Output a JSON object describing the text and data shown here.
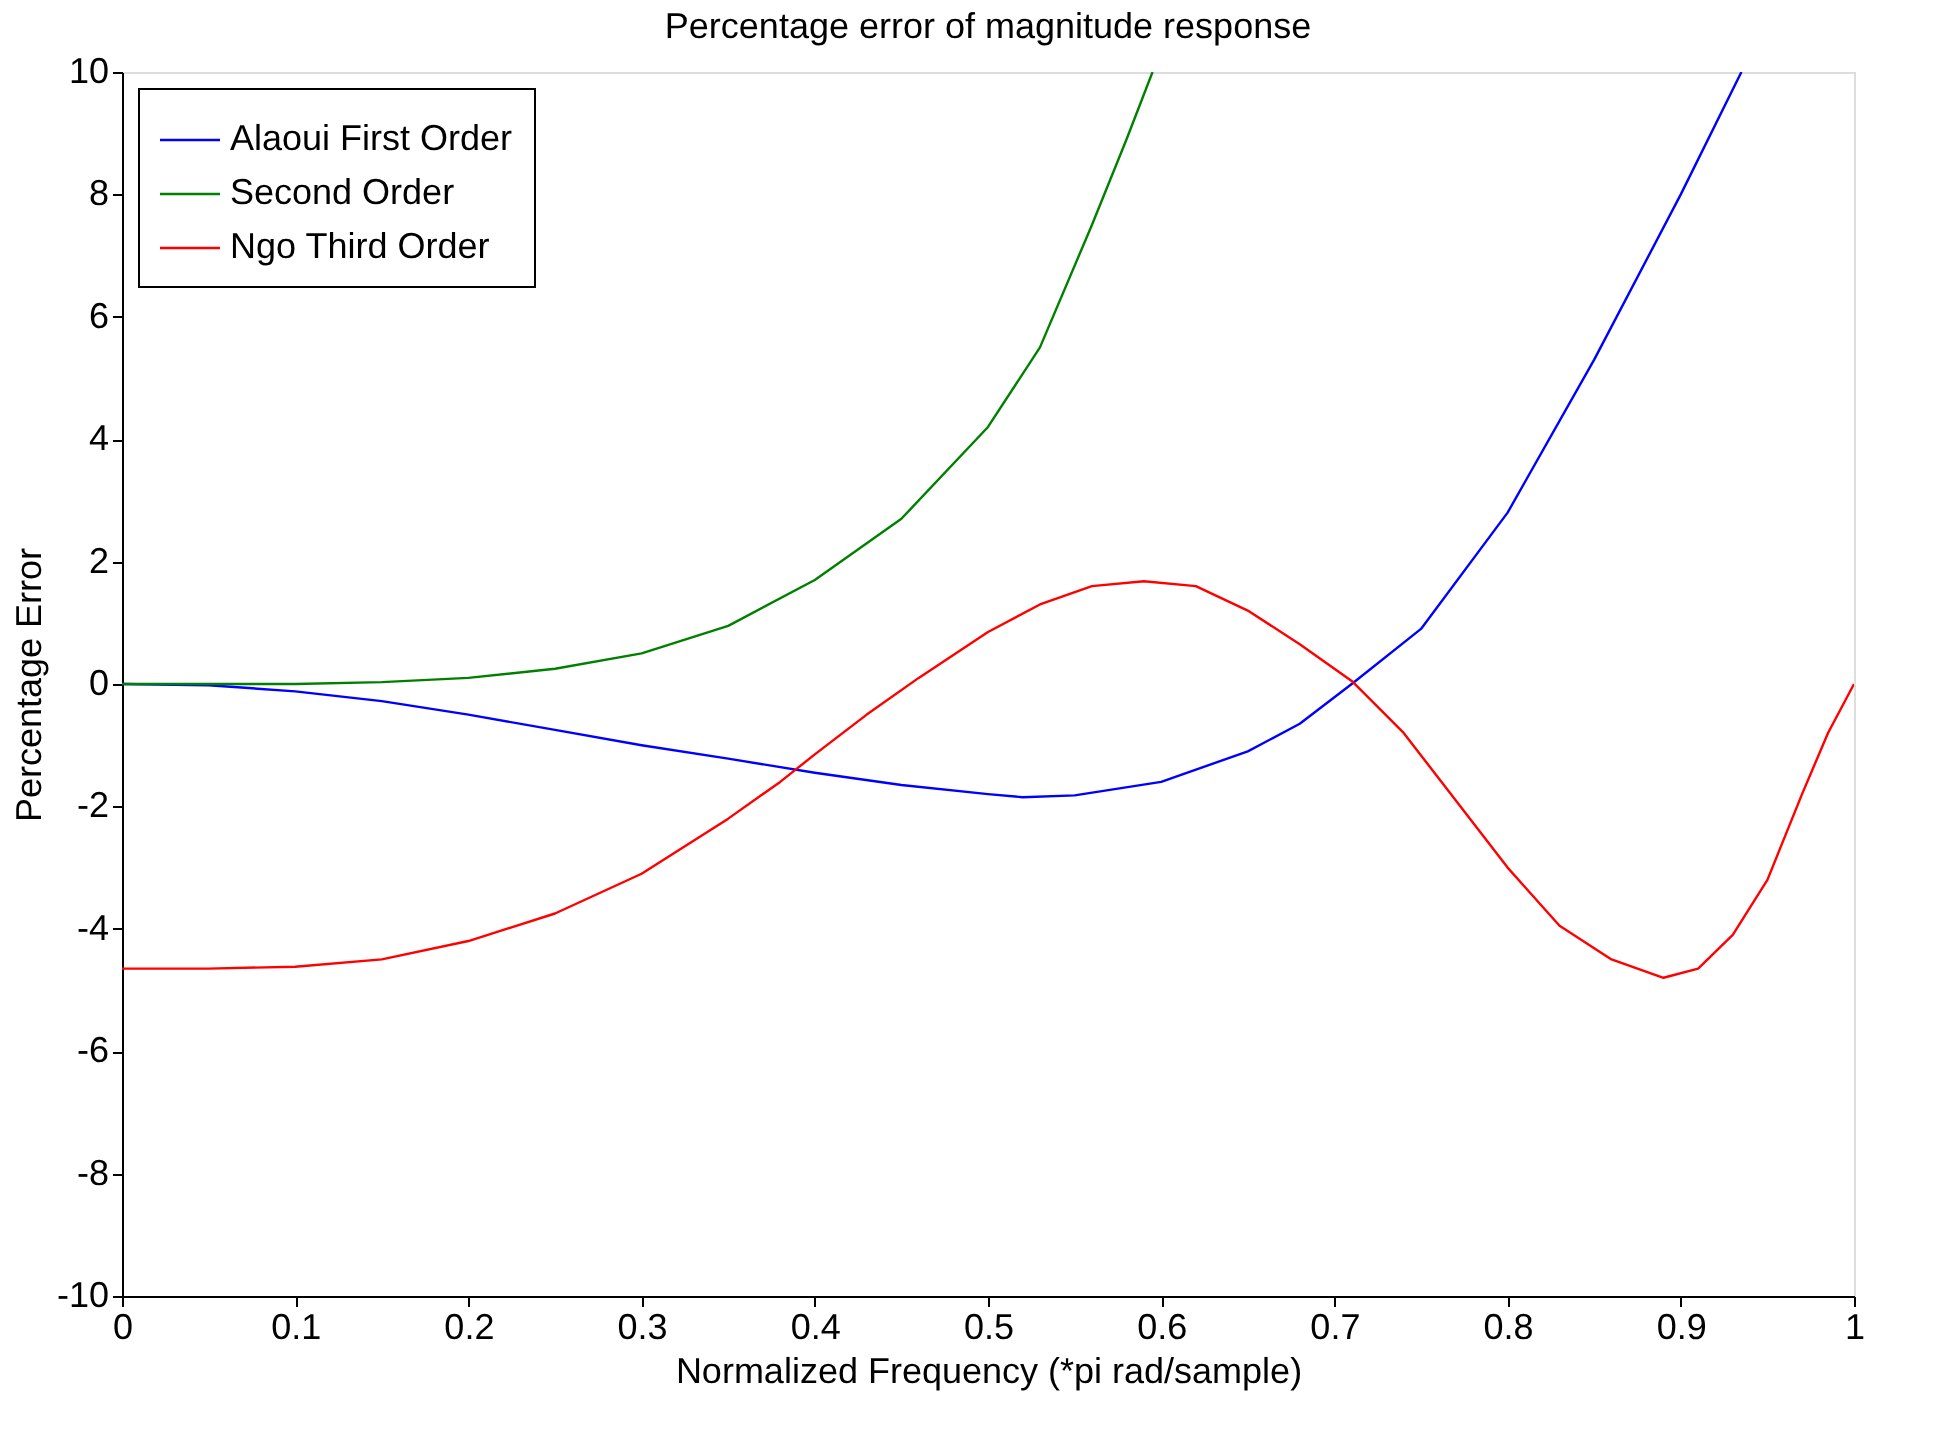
{
  "chart_data": {
    "type": "line",
    "title": "Percentage error of magnitude response",
    "xlabel": "Normalized Frequency (*pi rad/sample)",
    "ylabel": "Percentage Error",
    "xlim": [
      0,
      1
    ],
    "ylim": [
      -10,
      10
    ],
    "xticks": [
      0,
      0.1,
      0.2,
      0.3,
      0.4,
      0.5,
      0.6,
      0.7,
      0.8,
      0.9,
      1
    ],
    "yticks": [
      -10,
      -8,
      -6,
      -4,
      -2,
      0,
      2,
      4,
      6,
      8,
      10
    ],
    "grid": false,
    "legend": "top left",
    "marker": "none",
    "line_style": "solid",
    "series": [
      {
        "name": "Alaoui First Order",
        "color": "#0000ff",
        "x": [
          0,
          0.05,
          0.1,
          0.15,
          0.2,
          0.25,
          0.3,
          0.35,
          0.4,
          0.45,
          0.5,
          0.52,
          0.55,
          0.6,
          0.65,
          0.68,
          0.71,
          0.75,
          0.8,
          0.85,
          0.9,
          0.935
        ],
        "values": [
          0,
          -0.02,
          -0.12,
          -0.28,
          -0.5,
          -0.75,
          -1.0,
          -1.22,
          -1.45,
          -1.65,
          -1.8,
          -1.85,
          -1.82,
          -1.6,
          -1.1,
          -0.65,
          0,
          0.9,
          2.8,
          5.3,
          8.0,
          10
        ]
      },
      {
        "name": "Second Order",
        "color": "#008000",
        "x": [
          0,
          0.05,
          0.1,
          0.15,
          0.2,
          0.25,
          0.3,
          0.35,
          0.4,
          0.45,
          0.5,
          0.53,
          0.56,
          0.58,
          0.595
        ],
        "values": [
          0,
          0,
          0,
          0.03,
          0.1,
          0.25,
          0.5,
          0.95,
          1.7,
          2.7,
          4.2,
          5.5,
          7.5,
          8.9,
          10
        ]
      },
      {
        "name": "Ngo Third Order",
        "color": "#ff0000",
        "x": [
          0,
          0.05,
          0.1,
          0.15,
          0.2,
          0.25,
          0.3,
          0.35,
          0.38,
          0.4,
          0.43,
          0.46,
          0.5,
          0.53,
          0.56,
          0.59,
          0.62,
          0.65,
          0.68,
          0.71,
          0.74,
          0.77,
          0.8,
          0.83,
          0.86,
          0.89,
          0.91,
          0.93,
          0.95,
          0.97,
          0.985,
          1
        ],
        "values": [
          -4.65,
          -4.65,
          -4.62,
          -4.5,
          -4.2,
          -3.75,
          -3.1,
          -2.2,
          -1.6,
          -1.15,
          -0.5,
          0.1,
          0.85,
          1.3,
          1.6,
          1.68,
          1.6,
          1.2,
          0.65,
          0.05,
          -0.8,
          -1.9,
          -3.0,
          -3.95,
          -4.5,
          -4.8,
          -4.65,
          -4.1,
          -3.2,
          -1.8,
          -0.8,
          0
        ]
      }
    ]
  }
}
